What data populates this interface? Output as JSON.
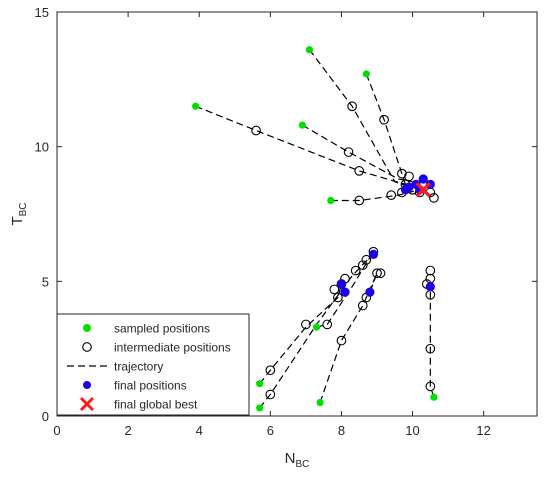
{
  "chart_data": {
    "type": "scatter",
    "title": "",
    "xlabel": "N",
    "xlabel_sub": "BC",
    "ylabel": "T",
    "ylabel_sub": "BC",
    "xlim": [
      0,
      13.5
    ],
    "ylim": [
      0,
      15
    ],
    "xticks": [
      0,
      2,
      4,
      6,
      8,
      10,
      12
    ],
    "yticks": [
      0,
      5,
      10,
      15
    ],
    "grid": false,
    "legend_position": "bottom-left",
    "legend": [
      {
        "label": "sampled positions",
        "marker": "filled-circle",
        "color": "#00e000"
      },
      {
        "label": "intermediate positions",
        "marker": "open-circle",
        "color": "#000000"
      },
      {
        "label": "trajectory",
        "marker": "dashed-line",
        "color": "#000000"
      },
      {
        "label": "final positions",
        "marker": "filled-circle",
        "color": "#1a00e6"
      },
      {
        "label": "final global best",
        "marker": "x",
        "color": "#ff1a1a"
      }
    ],
    "colors": {
      "sampled": "#00e000",
      "intermediate": "#000000",
      "final": "#1a00e6",
      "best": "#ff1a1a"
    },
    "trajectories": [
      {
        "points": [
          [
            3.9,
            11.5
          ],
          [
            5.6,
            10.6
          ],
          [
            8.5,
            9.1
          ],
          [
            9.8,
            8.6
          ],
          [
            10.2,
            8.5
          ]
        ]
      },
      {
        "points": [
          [
            7.1,
            13.6
          ],
          [
            8.3,
            11.5
          ],
          [
            9.5,
            8.7
          ],
          [
            9.9,
            8.5
          ]
        ]
      },
      {
        "points": [
          [
            8.7,
            12.7
          ],
          [
            9.2,
            11.0
          ],
          [
            9.8,
            8.6
          ],
          [
            10.1,
            8.6
          ]
        ]
      },
      {
        "points": [
          [
            6.9,
            10.8
          ],
          [
            8.2,
            9.8
          ],
          [
            9.6,
            8.8
          ],
          [
            10.0,
            8.7
          ]
        ]
      },
      {
        "points": [
          [
            7.7,
            8.0
          ],
          [
            8.5,
            8.0
          ],
          [
            9.6,
            8.2
          ],
          [
            10.2,
            8.4
          ]
        ]
      },
      {
        "points": [
          [
            5.7,
            1.2
          ],
          [
            6.0,
            1.7
          ],
          [
            7.0,
            3.3
          ],
          [
            7.9,
            4.4
          ],
          [
            8.0,
            4.9
          ]
        ]
      },
      {
        "points": [
          [
            5.7,
            0.3
          ],
          [
            6.0,
            0.8
          ],
          [
            7.3,
            3.4
          ],
          [
            8.3,
            5.2
          ],
          [
            8.8,
            5.9
          ]
        ]
      },
      {
        "points": [
          [
            7.3,
            3.3
          ],
          [
            7.6,
            3.4
          ],
          [
            8.3,
            4.8
          ],
          [
            8.9,
            6.1
          ],
          [
            8.9,
            6.0
          ]
        ]
      },
      {
        "points": [
          [
            7.4,
            0.5
          ],
          [
            8.0,
            2.8
          ],
          [
            8.6,
            4.1
          ],
          [
            9.0,
            5.3
          ],
          [
            8.8,
            4.6
          ]
        ]
      },
      {
        "points": [
          [
            10.6,
            0.7
          ],
          [
            10.5,
            1.1
          ],
          [
            10.5,
            2.5
          ],
          [
            10.5,
            4.5
          ],
          [
            10.5,
            4.8
          ]
        ]
      }
    ],
    "sampled_positions": [
      [
        3.9,
        11.5
      ],
      [
        7.1,
        13.6
      ],
      [
        8.7,
        12.7
      ],
      [
        6.9,
        10.8
      ],
      [
        7.7,
        8.0
      ],
      [
        5.7,
        1.2
      ],
      [
        5.7,
        0.3
      ],
      [
        7.3,
        3.3
      ],
      [
        7.4,
        0.5
      ],
      [
        10.6,
        0.7
      ]
    ],
    "intermediate_positions": [
      [
        5.6,
        10.6
      ],
      [
        8.5,
        9.1
      ],
      [
        9.8,
        8.6
      ],
      [
        8.3,
        11.5
      ],
      [
        9.2,
        11.0
      ],
      [
        8.2,
        9.8
      ],
      [
        8.5,
        8.0
      ],
      [
        9.4,
        8.2
      ],
      [
        9.7,
        9.0
      ],
      [
        9.9,
        8.9
      ],
      [
        10.0,
        8.4
      ],
      [
        10.2,
        8.3
      ],
      [
        10.5,
        8.3
      ],
      [
        10.6,
        8.1
      ],
      [
        9.7,
        8.3
      ],
      [
        6.0,
        1.7
      ],
      [
        6.0,
        0.8
      ],
      [
        7.0,
        3.4
      ],
      [
        7.6,
        3.4
      ],
      [
        8.0,
        2.8
      ],
      [
        8.6,
        4.1
      ],
      [
        8.7,
        4.4
      ],
      [
        7.9,
        4.4
      ],
      [
        8.0,
        4.9
      ],
      [
        8.1,
        5.1
      ],
      [
        7.8,
        4.7
      ],
      [
        8.4,
        5.4
      ],
      [
        8.6,
        5.6
      ],
      [
        8.7,
        5.8
      ],
      [
        8.9,
        6.1
      ],
      [
        9.0,
        5.3
      ],
      [
        9.1,
        5.3
      ],
      [
        10.5,
        1.1
      ],
      [
        10.5,
        2.5
      ],
      [
        10.5,
        4.5
      ],
      [
        10.4,
        4.9
      ],
      [
        10.5,
        5.1
      ],
      [
        10.5,
        5.4
      ]
    ],
    "final_positions": [
      [
        10.3,
        8.8
      ],
      [
        10.1,
        8.6
      ],
      [
        10.5,
        8.6
      ],
      [
        9.9,
        8.5
      ],
      [
        10.2,
        8.4
      ],
      [
        9.8,
        8.4
      ],
      [
        8.0,
        4.9
      ],
      [
        8.1,
        4.6
      ],
      [
        8.9,
        6.0
      ],
      [
        8.8,
        4.6
      ],
      [
        10.5,
        4.8
      ]
    ],
    "global_best": [
      10.3,
      8.4
    ]
  }
}
